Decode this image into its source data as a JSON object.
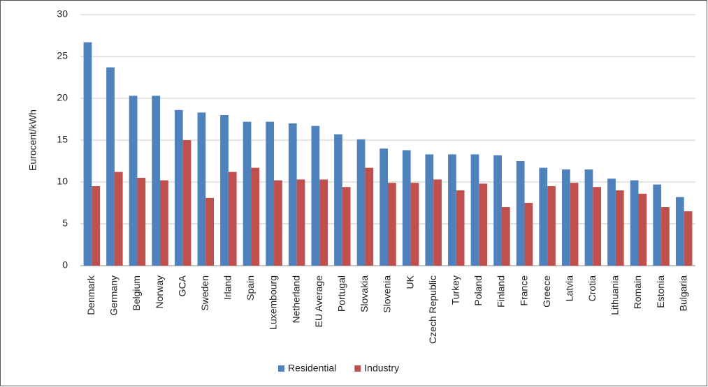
{
  "chart_data": {
    "type": "bar",
    "ylabel": "Eurocent/kWh",
    "categories": [
      "Denmark",
      "Germany",
      "Belgium",
      "Norway",
      "GCA",
      "Sweden",
      "Irland",
      "Spain",
      "Luxembourg",
      "Netherland",
      "EU Average",
      "Portugal",
      "Slovakia",
      "Slovenia",
      "UK",
      "Czech Republic",
      "Turkey",
      "Poland",
      "Finland",
      "France",
      "Greece",
      "Latvia",
      "Crotia",
      "Lithuania",
      "Romain",
      "Estonia",
      "Bulgaria"
    ],
    "series": [
      {
        "name": "Residential",
        "color": "#4f81bd",
        "values": [
          26.7,
          23.7,
          20.3,
          20.3,
          18.6,
          18.3,
          18,
          17.2,
          17.2,
          17,
          16.7,
          15.7,
          15.1,
          14,
          13.8,
          13.3,
          13.3,
          13.3,
          13.2,
          12.5,
          11.7,
          11.5,
          11.5,
          10.4,
          10.2,
          9.7,
          8.2
        ]
      },
      {
        "name": "Industry",
        "color": "#c0504d",
        "values": [
          9.5,
          11.2,
          10.5,
          10.2,
          15,
          8.1,
          11.2,
          11.7,
          10.2,
          10.3,
          10.3,
          9.4,
          11.7,
          9.9,
          9.9,
          10.3,
          9,
          9.8,
          7,
          7.5,
          9.5,
          9.9,
          9.4,
          9,
          8.6,
          7,
          6.5
        ]
      }
    ],
    "ylim": [
      0,
      30
    ],
    "yticks": [
      0,
      5,
      10,
      15,
      20,
      25,
      30
    ],
    "grid": true,
    "legend": "bottom"
  }
}
